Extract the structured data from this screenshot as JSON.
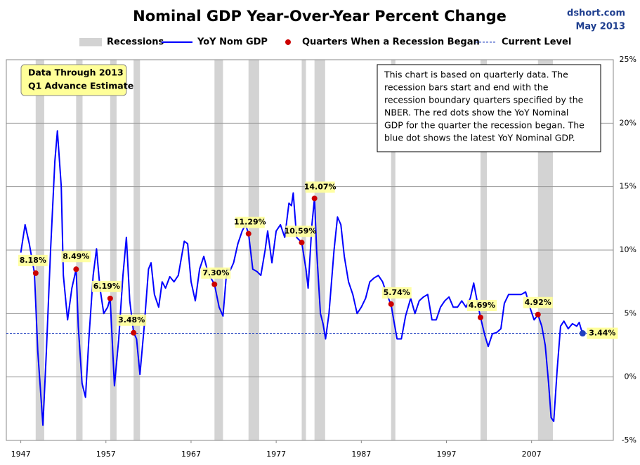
{
  "chart_data": {
    "type": "line",
    "title": "Nominal GDP Year-Over-Year Percent Change",
    "source": "dshort.com",
    "date": "May 2013",
    "box_label": [
      "Data Through 2013",
      "Q1 Advance Estimate"
    ],
    "note": [
      "This chart is based on quarterly  data. The",
      "recession bars start and end with the",
      "recession boundary quarters  specified by the",
      "NBER. The red dots show the YoY Nominal",
      "GDP for the quarter the recession began. The",
      "blue dot shows the latest YoY Nominal GDP."
    ],
    "xlim": [
      1945.3,
      2016.6
    ],
    "xticks": [
      1947,
      1957,
      1967,
      1977,
      1987,
      1997,
      2007
    ],
    "ylim": [
      -5,
      25
    ],
    "yticks": [
      {
        "value": -5,
        "label": "-5%"
      },
      {
        "value": 0,
        "label": "0%"
      },
      {
        "value": 5,
        "label": "5%"
      },
      {
        "value": 10,
        "label": "10%"
      },
      {
        "value": 15,
        "label": "15%"
      },
      {
        "value": 20,
        "label": "20%"
      },
      {
        "value": 25,
        "label": "25%"
      }
    ],
    "grid": true,
    "recessions": {
      "name": "Recessions",
      "color": "#d3d3d3",
      "spans": [
        [
          1948.75,
          1949.75
        ],
        [
          1953.5,
          1954.25
        ],
        [
          1957.5,
          1958.25
        ],
        [
          1960.25,
          1961.0
        ],
        [
          1969.75,
          1970.75
        ],
        [
          1973.75,
          1975.0
        ],
        [
          1980.0,
          1980.5
        ],
        [
          1981.5,
          1982.75
        ],
        [
          1990.5,
          1991.0
        ],
        [
          2001.0,
          2001.75
        ],
        [
          2007.75,
          2009.5
        ]
      ]
    },
    "series": [
      {
        "name": "YoY Nom GDP",
        "color": "#0000ff",
        "x": [
          1947.0,
          1947.5,
          1948.0,
          1948.6,
          1949.0,
          1949.6,
          1950.0,
          1950.5,
          1951.0,
          1951.3,
          1951.75,
          1952.0,
          1952.5,
          1953.0,
          1953.5,
          1953.75,
          1954.2,
          1954.6,
          1955.0,
          1955.5,
          1955.9,
          1956.3,
          1956.75,
          1957.2,
          1957.5,
          1958.0,
          1958.5,
          1959.0,
          1959.4,
          1959.8,
          1960.25,
          1960.6,
          1961.0,
          1961.5,
          1962.0,
          1962.3,
          1962.7,
          1963.2,
          1963.6,
          1964.0,
          1964.5,
          1965.0,
          1965.5,
          1966.2,
          1966.6,
          1967.0,
          1967.5,
          1968.0,
          1968.5,
          1969.0,
          1969.75,
          1970.3,
          1970.75,
          1971.2,
          1971.6,
          1972.0,
          1972.5,
          1973.0,
          1973.4,
          1973.75,
          1974.25,
          1974.75,
          1975.2,
          1975.7,
          1976.0,
          1976.5,
          1977.0,
          1977.5,
          1978.0,
          1978.5,
          1978.8,
          1979.0,
          1979.4,
          1980.0,
          1980.5,
          1980.75,
          1981.2,
          1981.5,
          1981.75,
          1982.2,
          1982.5,
          1982.8,
          1983.2,
          1983.8,
          1984.2,
          1984.6,
          1985.0,
          1985.5,
          1986.0,
          1986.5,
          1987.0,
          1987.5,
          1988.0,
          1988.5,
          1989.0,
          1989.5,
          1990.0,
          1990.5,
          1990.8,
          1991.2,
          1991.7,
          1992.2,
          1992.8,
          1993.3,
          1993.8,
          1994.3,
          1994.8,
          1995.3,
          1995.8,
          1996.3,
          1996.8,
          1997.3,
          1997.8,
          1998.3,
          1998.8,
          1999.3,
          1999.8,
          2000.2,
          2000.6,
          2001.0,
          2001.5,
          2001.9,
          2002.4,
          2002.9,
          2003.4,
          2003.8,
          2004.3,
          2004.8,
          2005.3,
          2005.8,
          2006.3,
          2006.8,
          2007.3,
          2007.75,
          2008.2,
          2008.6,
          2009.0,
          2009.3,
          2009.6,
          2010.0,
          2010.4,
          2010.8,
          2011.3,
          2011.8,
          2012.3,
          2012.6,
          2012.8,
          2013.0
        ],
        "values": [
          9.8,
          12.0,
          10.5,
          8.2,
          2.0,
          -3.8,
          2.0,
          10.0,
          17.0,
          19.4,
          15.0,
          8.0,
          4.5,
          7.0,
          8.5,
          4.0,
          -0.5,
          -1.6,
          3.0,
          8.0,
          10.1,
          7.0,
          5.0,
          5.5,
          6.2,
          -0.7,
          3.0,
          8.0,
          11.0,
          6.0,
          3.5,
          3.0,
          0.2,
          4.0,
          8.5,
          9.0,
          6.5,
          5.5,
          7.5,
          7.0,
          7.9,
          7.5,
          8.0,
          10.7,
          10.5,
          7.5,
          6.0,
          8.5,
          9.5,
          8.2,
          7.3,
          5.5,
          4.8,
          8.5,
          8.4,
          9.0,
          10.5,
          11.5,
          12.0,
          11.3,
          8.5,
          8.3,
          8.0,
          10.0,
          11.5,
          9.0,
          11.5,
          12.0,
          11.0,
          13.7,
          13.5,
          14.5,
          11.0,
          10.6,
          8.5,
          7.0,
          12.0,
          14.1,
          10.0,
          5.0,
          4.2,
          3.0,
          5.0,
          10.0,
          12.6,
          12.0,
          9.5,
          7.5,
          6.5,
          5.0,
          5.5,
          6.2,
          7.5,
          7.8,
          8.0,
          7.5,
          6.5,
          5.7,
          4.5,
          3.0,
          3.0,
          4.8,
          6.2,
          5.0,
          6.0,
          6.3,
          6.5,
          4.5,
          4.5,
          5.5,
          6.0,
          6.3,
          5.5,
          5.5,
          6.0,
          5.5,
          6.2,
          7.4,
          6.0,
          4.7,
          3.3,
          2.4,
          3.4,
          3.5,
          3.8,
          5.8,
          6.5,
          6.5,
          6.5,
          6.5,
          6.7,
          5.5,
          4.5,
          4.9,
          4.0,
          2.5,
          -0.5,
          -3.2,
          -3.5,
          0.5,
          4.0,
          4.4,
          3.8,
          4.2,
          4.0,
          4.3,
          3.8,
          3.44
        ]
      }
    ],
    "recession_starts": {
      "name": "Quarters When a Recession Began",
      "color": "#cc0000",
      "x": [
        1948.75,
        1953.5,
        1957.5,
        1960.25,
        1969.75,
        1973.75,
        1980.0,
        1981.5,
        1990.5,
        2001.0,
        2007.75
      ],
      "values": [
        8.18,
        8.49,
        6.19,
        3.48,
        7.3,
        11.29,
        10.59,
        14.07,
        5.74,
        4.69,
        4.92
      ],
      "value_labels": [
        "8.18%",
        "8.49%",
        "6.19%",
        "3.48%",
        "7.30%",
        "11.29%",
        "10.59%",
        "14.07%",
        "5.74%",
        "4.69%",
        "4.92%"
      ]
    },
    "current": {
      "name": "Current Level",
      "color": "#1f3fbf",
      "x": [
        2013.0
      ],
      "values": [
        3.44
      ],
      "value_labels": [
        "3.44%"
      ]
    }
  }
}
